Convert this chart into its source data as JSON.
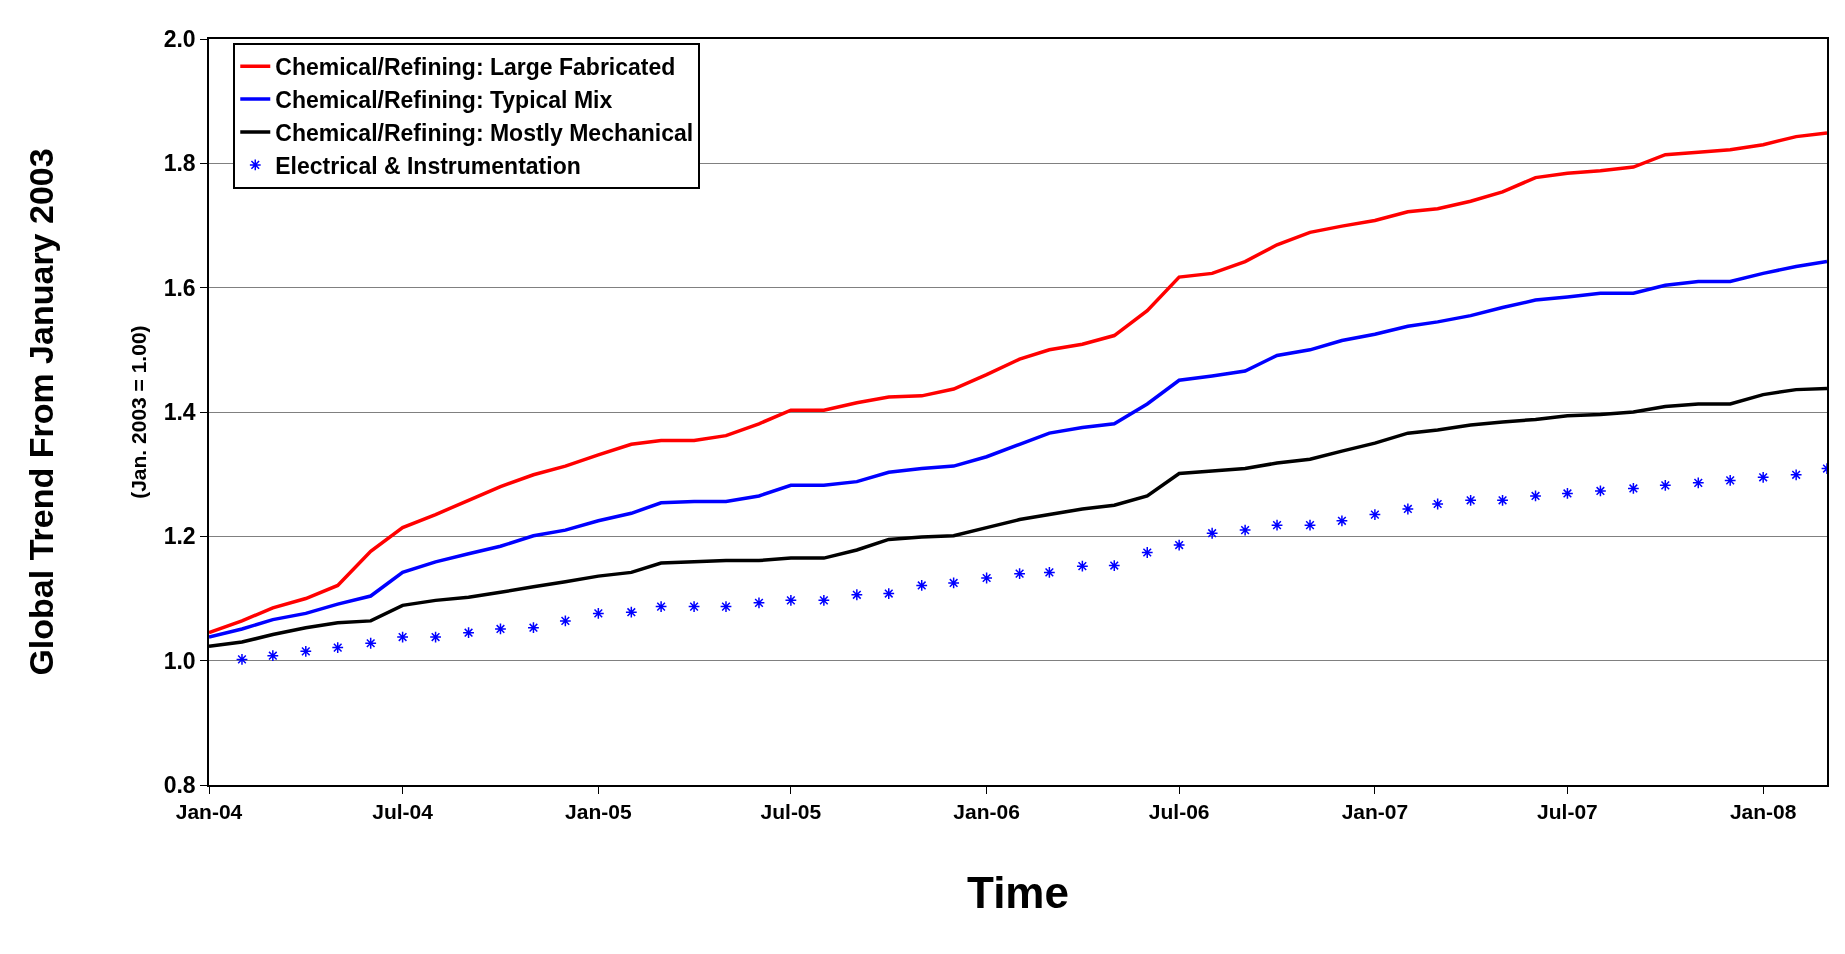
{
  "chart_data": {
    "type": "line",
    "xlabel": "Time",
    "ylabel": "Global Trend From January 2003",
    "annotations": [
      "(Jan. 2003 = 1.00)"
    ],
    "x": [
      "2004-01-01",
      "2004-02-01",
      "2004-03-01",
      "2004-04-01",
      "2004-05-01",
      "2004-06-01",
      "2004-07-01",
      "2004-08-01",
      "2004-09-01",
      "2004-10-01",
      "2004-11-01",
      "2004-12-01",
      "2005-01-01",
      "2005-02-01",
      "2005-03-01",
      "2005-04-01",
      "2005-05-01",
      "2005-06-01",
      "2005-07-01",
      "2005-08-01",
      "2005-09-01",
      "2005-10-01",
      "2005-11-01",
      "2005-12-01",
      "2006-01-01",
      "2006-02-01",
      "2006-03-01",
      "2006-04-01",
      "2006-05-01",
      "2006-06-01",
      "2006-07-01",
      "2006-08-01",
      "2006-09-01",
      "2006-10-01",
      "2006-11-01",
      "2006-12-01",
      "2007-01-01",
      "2007-02-01",
      "2007-03-01",
      "2007-04-01",
      "2007-05-01",
      "2007-06-01",
      "2007-07-01",
      "2007-08-01",
      "2007-09-01",
      "2007-10-01",
      "2007-11-01",
      "2007-12-01",
      "2008-01-01",
      "2008-02-01",
      "2008-03-01"
    ],
    "series": [
      {
        "name": "Chemical/Refining: Large Fabricated",
        "color": "#ff0000",
        "marker": "none",
        "values": [
          1.045,
          1.064,
          1.085,
          1.1,
          1.121,
          1.176,
          1.214,
          1.235,
          1.258,
          1.28,
          1.299,
          1.313,
          1.331,
          1.348,
          1.354,
          1.354,
          1.362,
          1.381,
          1.403,
          1.403,
          1.415,
          1.424,
          1.426,
          1.437,
          1.46,
          1.485,
          1.5,
          1.509,
          1.523,
          1.563,
          1.617,
          1.623,
          1.642,
          1.669,
          1.689,
          1.699,
          1.708,
          1.722,
          1.727,
          1.739,
          1.754,
          1.777,
          1.784,
          1.788,
          1.794,
          1.814,
          1.818,
          1.822,
          1.83,
          1.843,
          1.849
        ]
      },
      {
        "name": "Chemical/Refining: Typical Mix",
        "color": "#0000ff",
        "marker": "none",
        "values": [
          1.038,
          1.051,
          1.066,
          1.076,
          1.091,
          1.104,
          1.142,
          1.159,
          1.172,
          1.184,
          1.201,
          1.21,
          1.225,
          1.237,
          1.254,
          1.256,
          1.256,
          1.265,
          1.282,
          1.282,
          1.288,
          1.303,
          1.309,
          1.313,
          1.328,
          1.348,
          1.366,
          1.375,
          1.381,
          1.413,
          1.451,
          1.458,
          1.466,
          1.491,
          1.5,
          1.515,
          1.525,
          1.538,
          1.545,
          1.555,
          1.568,
          1.58,
          1.585,
          1.591,
          1.591,
          1.604,
          1.61,
          1.61,
          1.623,
          1.634,
          1.642
        ]
      },
      {
        "name": "Chemical/Refining: Mostly Mechanical",
        "color": "#000000",
        "marker": "none",
        "values": [
          1.023,
          1.03,
          1.042,
          1.053,
          1.061,
          1.064,
          1.089,
          1.097,
          1.102,
          1.11,
          1.119,
          1.127,
          1.136,
          1.142,
          1.157,
          1.159,
          1.161,
          1.161,
          1.165,
          1.165,
          1.178,
          1.195,
          1.199,
          1.201,
          1.214,
          1.227,
          1.235,
          1.244,
          1.25,
          1.265,
          1.301,
          1.305,
          1.309,
          1.318,
          1.324,
          1.337,
          1.35,
          1.366,
          1.371,
          1.379,
          1.384,
          1.388,
          1.394,
          1.396,
          1.4,
          1.409,
          1.413,
          1.413,
          1.428,
          1.436,
          1.438
        ]
      },
      {
        "name": "Electrical & Instrumentation",
        "type": "scatter",
        "color": "#0000ff",
        "marker": "cross",
        "x": [
          "2004-02-01",
          "2004-03-01",
          "2004-04-01",
          "2004-05-01",
          "2004-06-01",
          "2004-07-01",
          "2004-08-01",
          "2004-09-01",
          "2004-10-01",
          "2004-11-01",
          "2004-12-01",
          "2005-01-01",
          "2005-02-01",
          "2005-03-01",
          "2005-04-01",
          "2005-05-01",
          "2005-06-01",
          "2005-07-01",
          "2005-08-01",
          "2005-09-01",
          "2005-10-01",
          "2005-11-01",
          "2005-12-01",
          "2006-01-01",
          "2006-02-01",
          "2006-03-01",
          "2006-04-01",
          "2006-05-01",
          "2006-06-01",
          "2006-07-01",
          "2006-08-01",
          "2006-09-01",
          "2006-10-01",
          "2006-11-01",
          "2006-12-01",
          "2007-01-01",
          "2007-02-01",
          "2007-03-01",
          "2007-04-01",
          "2007-05-01",
          "2007-06-01",
          "2007-07-01",
          "2007-08-01",
          "2007-09-01",
          "2007-10-01",
          "2007-11-01",
          "2007-12-01",
          "2008-01-01",
          "2008-02-01",
          "2008-03-01"
        ],
        "values": [
          1.002,
          1.008,
          1.015,
          1.021,
          1.028,
          1.038,
          1.038,
          1.045,
          1.051,
          1.053,
          1.064,
          1.076,
          1.078,
          1.087,
          1.087,
          1.087,
          1.093,
          1.097,
          1.097,
          1.106,
          1.108,
          1.121,
          1.125,
          1.133,
          1.14,
          1.142,
          1.152,
          1.153,
          1.174,
          1.186,
          1.205,
          1.21,
          1.218,
          1.218,
          1.225,
          1.235,
          1.244,
          1.252,
          1.258,
          1.258,
          1.265,
          1.269,
          1.273,
          1.277,
          1.282,
          1.286,
          1.29,
          1.295,
          1.299,
          1.309
        ]
      }
    ],
    "xlim": [
      "2004-01-01",
      "2008-03-01"
    ],
    "xticks": [
      {
        "value": "2004-01-01",
        "label": "Jan-04"
      },
      {
        "value": "2004-07-01",
        "label": "Jul-04"
      },
      {
        "value": "2005-01-01",
        "label": "Jan-05"
      },
      {
        "value": "2005-07-01",
        "label": "Jul-05"
      },
      {
        "value": "2006-01-01",
        "label": "Jan-06"
      },
      {
        "value": "2006-07-01",
        "label": "Jul-06"
      },
      {
        "value": "2007-01-01",
        "label": "Jan-07"
      },
      {
        "value": "2007-07-01",
        "label": "Jul-07"
      },
      {
        "value": "2008-01-01",
        "label": "Jan-08"
      }
    ],
    "ylim": [
      0.8,
      2.0
    ],
    "yticks": [
      {
        "value": 0.8,
        "label": "0.8"
      },
      {
        "value": 1.0,
        "label": "1.0"
      },
      {
        "value": 1.2,
        "label": "1.2"
      },
      {
        "value": 1.4,
        "label": "1.4"
      },
      {
        "value": 1.6,
        "label": "1.6"
      },
      {
        "value": 1.8,
        "label": "1.8"
      },
      {
        "value": 2.0,
        "label": "2.0"
      }
    ],
    "grid": "y",
    "legend": "top left",
    "line_style": "solid"
  }
}
